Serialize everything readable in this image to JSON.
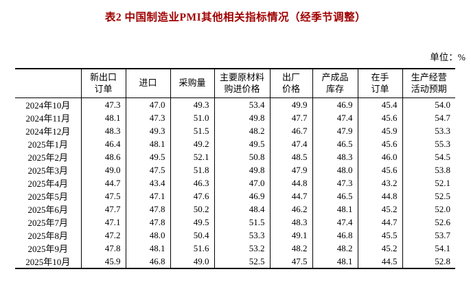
{
  "title": "表2 中国制造业PMI其他相关指标情况（经季节调整）",
  "unit_label": "单位：%",
  "colors": {
    "title_color": "#a00000",
    "text_color": "#000000",
    "border_color": "#000000",
    "background": "#ffffff"
  },
  "table": {
    "columns": [
      "新出口\n订单",
      "进口",
      "采购量",
      "主要原材料\n购进价格",
      "出厂\n价格",
      "产成品\n库存",
      "在手\n订单",
      "生产经营\n活动预期"
    ],
    "rows": [
      {
        "label": "2024年10月",
        "values": [
          "47.3",
          "47.0",
          "49.3",
          "53.4",
          "49.9",
          "46.9",
          "45.4",
          "54.0"
        ]
      },
      {
        "label": "2024年11月",
        "values": [
          "48.1",
          "47.3",
          "51.0",
          "49.8",
          "47.7",
          "47.4",
          "45.6",
          "54.7"
        ]
      },
      {
        "label": "2024年12月",
        "values": [
          "48.3",
          "49.3",
          "51.5",
          "48.2",
          "46.7",
          "47.9",
          "45.9",
          "53.3"
        ]
      },
      {
        "label": "2025年1月",
        "values": [
          "46.4",
          "48.1",
          "49.2",
          "49.5",
          "47.4",
          "46.5",
          "45.6",
          "55.3"
        ]
      },
      {
        "label": "2025年2月",
        "values": [
          "48.6",
          "49.5",
          "52.1",
          "50.8",
          "48.5",
          "48.3",
          "46.0",
          "54.5"
        ]
      },
      {
        "label": "2025年3月",
        "values": [
          "49.0",
          "47.5",
          "51.8",
          "49.8",
          "47.9",
          "48.0",
          "45.6",
          "53.8"
        ]
      },
      {
        "label": "2025年4月",
        "values": [
          "44.7",
          "43.4",
          "46.3",
          "47.0",
          "44.8",
          "47.3",
          "43.2",
          "52.1"
        ]
      },
      {
        "label": "2025年5月",
        "values": [
          "47.5",
          "47.1",
          "47.6",
          "46.9",
          "44.7",
          "46.5",
          "44.8",
          "52.5"
        ]
      },
      {
        "label": "2025年6月",
        "values": [
          "47.7",
          "47.8",
          "50.2",
          "48.4",
          "46.2",
          "48.1",
          "45.2",
          "52.0"
        ]
      },
      {
        "label": "2025年7月",
        "values": [
          "47.1",
          "47.8",
          "49.5",
          "51.5",
          "48.3",
          "47.4",
          "44.7",
          "52.6"
        ]
      },
      {
        "label": "2025年8月",
        "values": [
          "47.2",
          "48.0",
          "50.4",
          "53.3",
          "49.1",
          "46.8",
          "45.5",
          "53.7"
        ]
      },
      {
        "label": "2025年9月",
        "values": [
          "47.8",
          "48.1",
          "51.6",
          "53.2",
          "48.2",
          "48.2",
          "45.2",
          "54.1"
        ]
      },
      {
        "label": "2025年10月",
        "values": [
          "45.9",
          "46.8",
          "49.0",
          "52.5",
          "47.5",
          "48.1",
          "44.5",
          "52.8"
        ]
      }
    ]
  },
  "chart_data": {
    "type": "table",
    "title": "表2 中国制造业PMI其他相关指标情况（经季节调整）",
    "unit": "%",
    "columns": [
      "新出口订单",
      "进口",
      "采购量",
      "主要原材料购进价格",
      "出厂价格",
      "产成品库存",
      "在手订单",
      "生产经营活动预期"
    ],
    "row_labels": [
      "2024年10月",
      "2024年11月",
      "2024年12月",
      "2025年1月",
      "2025年2月",
      "2025年3月",
      "2025年4月",
      "2025年5月",
      "2025年6月",
      "2025年7月",
      "2025年8月",
      "2025年9月",
      "2025年10月"
    ],
    "values": [
      [
        47.3,
        47.0,
        49.3,
        53.4,
        49.9,
        46.9,
        45.4,
        54.0
      ],
      [
        48.1,
        47.3,
        51.0,
        49.8,
        47.7,
        47.4,
        45.6,
        54.7
      ],
      [
        48.3,
        49.3,
        51.5,
        48.2,
        46.7,
        47.9,
        45.9,
        53.3
      ],
      [
        46.4,
        48.1,
        49.2,
        49.5,
        47.4,
        46.5,
        45.6,
        55.3
      ],
      [
        48.6,
        49.5,
        52.1,
        50.8,
        48.5,
        48.3,
        46.0,
        54.5
      ],
      [
        49.0,
        47.5,
        51.8,
        49.8,
        47.9,
        48.0,
        45.6,
        53.8
      ],
      [
        44.7,
        43.4,
        46.3,
        47.0,
        44.8,
        47.3,
        43.2,
        52.1
      ],
      [
        47.5,
        47.1,
        47.6,
        46.9,
        44.7,
        46.5,
        44.8,
        52.5
      ],
      [
        47.7,
        47.8,
        50.2,
        48.4,
        46.2,
        48.1,
        45.2,
        52.0
      ],
      [
        47.1,
        47.8,
        49.5,
        51.5,
        48.3,
        47.4,
        44.7,
        52.6
      ],
      [
        47.2,
        48.0,
        50.4,
        53.3,
        49.1,
        46.8,
        45.5,
        53.7
      ],
      [
        47.8,
        48.1,
        51.6,
        53.2,
        48.2,
        48.2,
        45.2,
        54.1
      ],
      [
        45.9,
        46.8,
        49.0,
        52.5,
        47.5,
        48.1,
        44.5,
        52.8
      ]
    ]
  }
}
